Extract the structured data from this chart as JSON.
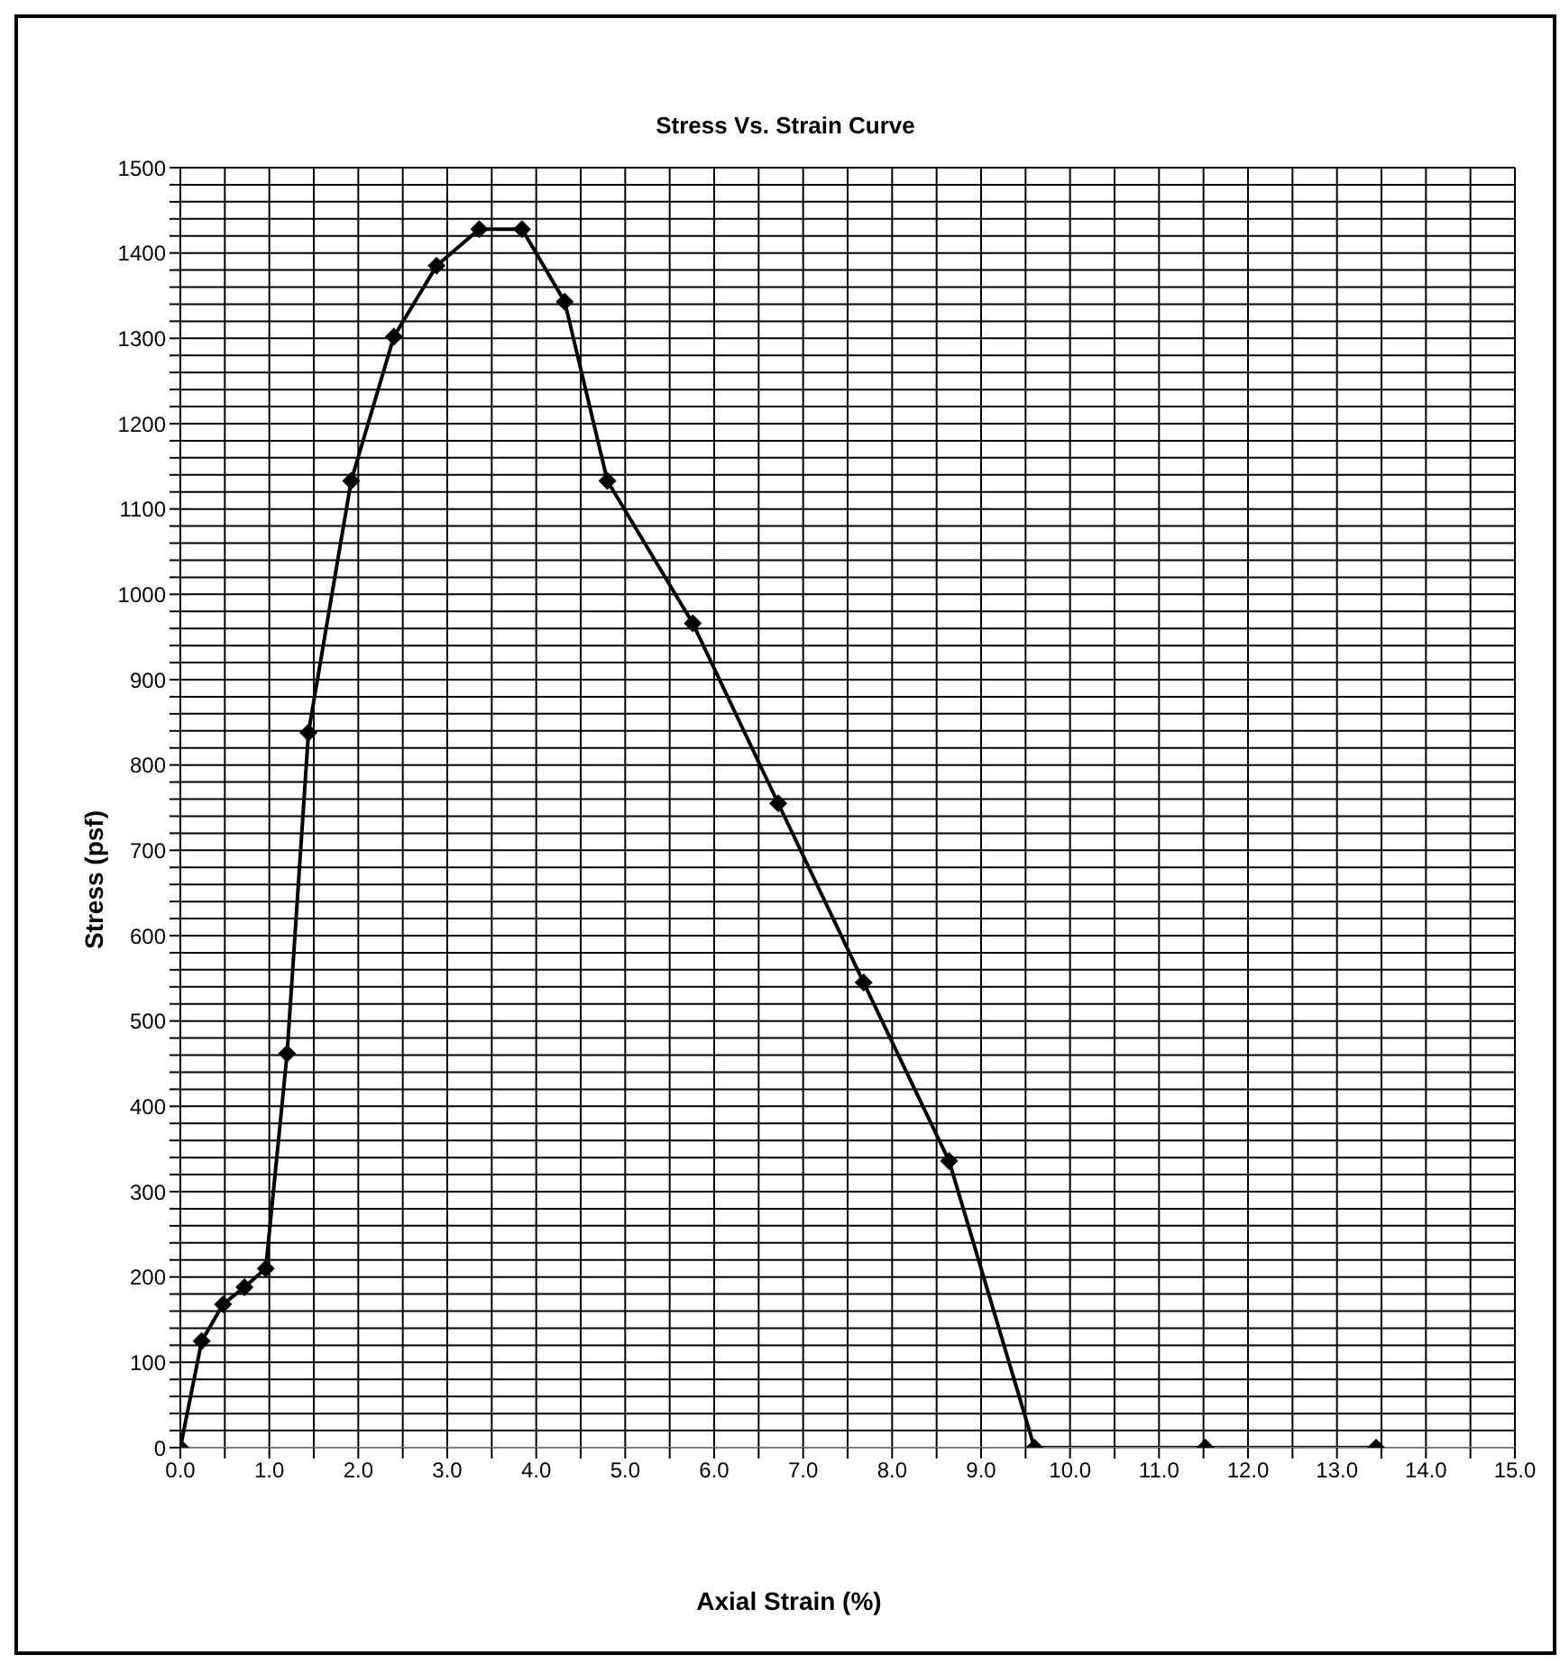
{
  "chart_data": {
    "type": "line",
    "title": "Stress Vs. Strain Curve",
    "xlabel": "Axial Strain (%)",
    "ylabel": "Stress (psf)",
    "x": [
      0,
      0.24,
      0.48,
      0.72,
      0.96,
      1.2,
      1.44,
      1.92,
      2.4,
      2.88,
      3.36,
      3.84,
      4.32,
      4.8,
      5.76,
      6.72,
      7.68,
      8.64,
      9.6,
      11.52,
      13.44
    ],
    "series": [
      {
        "color": "#000000",
        "values": [
          0,
          125,
          168,
          188,
          210,
          462,
          838,
          1133,
          1302,
          1385,
          1428,
          1428,
          1343,
          1133,
          966,
          755,
          545,
          336,
          0,
          0,
          0
        ]
      }
    ],
    "xlim": [
      0,
      15
    ],
    "xticks": [
      {
        "value": 0,
        "label": "0.0"
      },
      {
        "value": 0.5,
        "label": null
      },
      {
        "value": 1,
        "label": "1.0"
      },
      {
        "value": 1.5,
        "label": null
      },
      {
        "value": 2,
        "label": "2.0"
      },
      {
        "value": 2.5,
        "label": null
      },
      {
        "value": 3,
        "label": "3.0"
      },
      {
        "value": 3.5,
        "label": null
      },
      {
        "value": 4,
        "label": "4.0"
      },
      {
        "value": 4.5,
        "label": null
      },
      {
        "value": 5,
        "label": "5.0"
      },
      {
        "value": 5.5,
        "label": null
      },
      {
        "value": 6,
        "label": "6.0"
      },
      {
        "value": 6.5,
        "label": null
      },
      {
        "value": 7,
        "label": "7.0"
      },
      {
        "value": 7.5,
        "label": null
      },
      {
        "value": 8,
        "label": "8.0"
      },
      {
        "value": 8.5,
        "label": null
      },
      {
        "value": 9,
        "label": "9.0"
      },
      {
        "value": 9.5,
        "label": null
      },
      {
        "value": 10,
        "label": "10.0"
      },
      {
        "value": 10.5,
        "label": null
      },
      {
        "value": 11,
        "label": "11.0"
      },
      {
        "value": 11.5,
        "label": null
      },
      {
        "value": 12,
        "label": "12.0"
      },
      {
        "value": 12.5,
        "label": null
      },
      {
        "value": 13,
        "label": "13.0"
      },
      {
        "value": 13.5,
        "label": null
      },
      {
        "value": 14,
        "label": "14.0"
      },
      {
        "value": 14.5,
        "label": null
      },
      {
        "value": 15,
        "label": "15.0"
      }
    ],
    "ylim": [
      0,
      1500
    ],
    "yticks": [
      0,
      {
        "value": 20,
        "label": null
      },
      {
        "value": 40,
        "label": null
      },
      {
        "value": 60,
        "label": null
      },
      {
        "value": 80,
        "label": null
      },
      100,
      {
        "value": 120,
        "label": null
      },
      {
        "value": 140,
        "label": null
      },
      {
        "value": 160,
        "label": null
      },
      {
        "value": 180,
        "label": null
      },
      200,
      {
        "value": 220,
        "label": null
      },
      {
        "value": 240,
        "label": null
      },
      {
        "value": 260,
        "label": null
      },
      {
        "value": 280,
        "label": null
      },
      300,
      {
        "value": 320,
        "label": null
      },
      {
        "value": 340,
        "label": null
      },
      {
        "value": 360,
        "label": null
      },
      {
        "value": 380,
        "label": null
      },
      400,
      {
        "value": 420,
        "label": null
      },
      {
        "value": 440,
        "label": null
      },
      {
        "value": 460,
        "label": null
      },
      {
        "value": 480,
        "label": null
      },
      500,
      {
        "value": 520,
        "label": null
      },
      {
        "value": 540,
        "label": null
      },
      {
        "value": 560,
        "label": null
      },
      {
        "value": 580,
        "label": null
      },
      600,
      {
        "value": 620,
        "label": null
      },
      {
        "value": 640,
        "label": null
      },
      {
        "value": 660,
        "label": null
      },
      {
        "value": 680,
        "label": null
      },
      700,
      {
        "value": 720,
        "label": null
      },
      {
        "value": 740,
        "label": null
      },
      {
        "value": 760,
        "label": null
      },
      {
        "value": 780,
        "label": null
      },
      800,
      {
        "value": 820,
        "label": null
      },
      {
        "value": 840,
        "label": null
      },
      {
        "value": 860,
        "label": null
      },
      {
        "value": 880,
        "label": null
      },
      900,
      {
        "value": 920,
        "label": null
      },
      {
        "value": 940,
        "label": null
      },
      {
        "value": 960,
        "label": null
      },
      {
        "value": 980,
        "label": null
      },
      1000,
      {
        "value": 1020,
        "label": null
      },
      {
        "value": 1040,
        "label": null
      },
      {
        "value": 1060,
        "label": null
      },
      {
        "value": 1080,
        "label": null
      },
      1100,
      {
        "value": 1120,
        "label": null
      },
      {
        "value": 1140,
        "label": null
      },
      {
        "value": 1160,
        "label": null
      },
      {
        "value": 1180,
        "label": null
      },
      1200,
      {
        "value": 1220,
        "label": null
      },
      {
        "value": 1240,
        "label": null
      },
      {
        "value": 1260,
        "label": null
      },
      {
        "value": 1280,
        "label": null
      },
      1300,
      {
        "value": 1320,
        "label": null
      },
      {
        "value": 1340,
        "label": null
      },
      {
        "value": 1360,
        "label": null
      },
      {
        "value": 1380,
        "label": null
      },
      1400,
      {
        "value": 1420,
        "label": null
      },
      {
        "value": 1440,
        "label": null
      },
      {
        "value": 1460,
        "label": null
      },
      {
        "value": 1480,
        "label": null
      },
      1500
    ],
    "grid": true,
    "legend": false,
    "marker": "diamond",
    "line_style": "solid"
  }
}
